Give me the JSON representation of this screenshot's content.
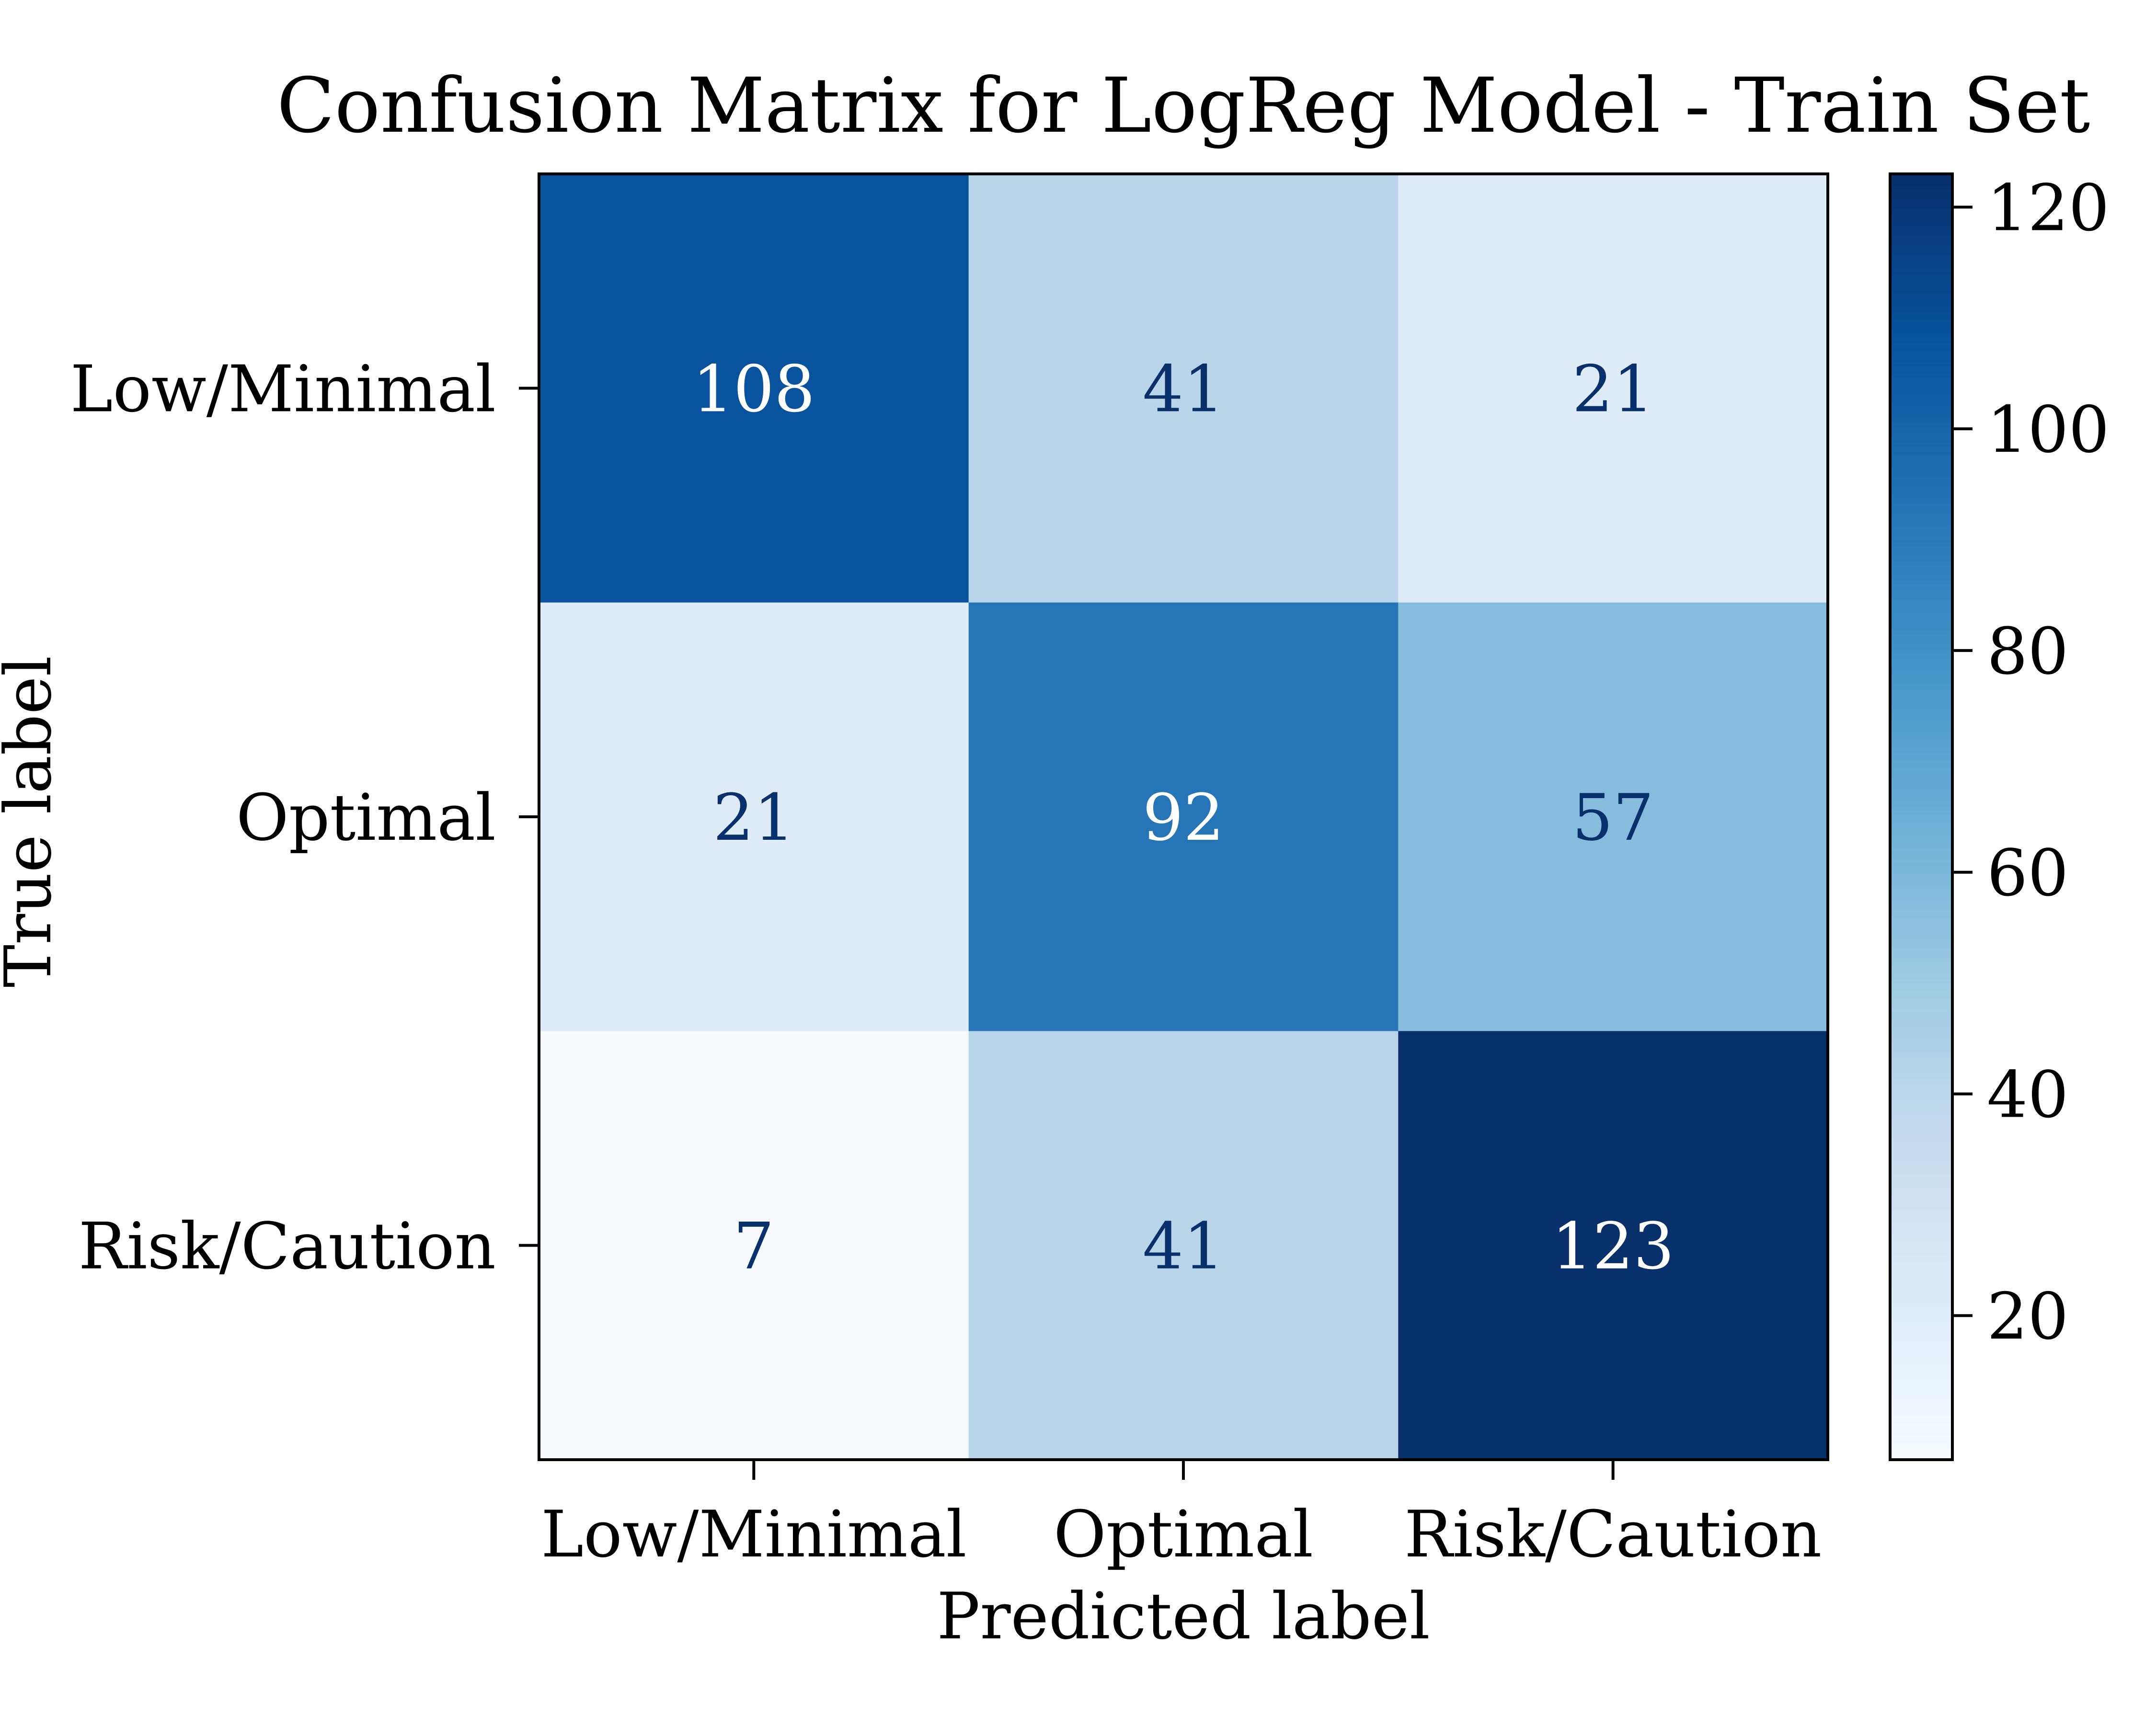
{
  "chart_data": {
    "type": "heatmap",
    "title": "Confusion Matrix for LogReg Model - Train Set",
    "xlabel": "Predicted label",
    "ylabel": "True label",
    "x_categories": [
      "Low/Minimal",
      "Optimal",
      "Risk/Caution"
    ],
    "y_categories": [
      "Low/Minimal",
      "Optimal",
      "Risk/Caution"
    ],
    "values": [
      [
        108,
        41,
        21
      ],
      [
        21,
        92,
        57
      ],
      [
        7,
        41,
        123
      ]
    ],
    "colormap": "Blues",
    "color_range": [
      7,
      123
    ],
    "colorbar_ticks": [
      20,
      40,
      60,
      80,
      100,
      120
    ],
    "colors": {
      "cmap_stops": [
        "#f7fbff",
        "#deebf7",
        "#c6dbef",
        "#9ecae1",
        "#6baed6",
        "#4292c6",
        "#2171b5",
        "#08519c",
        "#08306b"
      ],
      "text_dark": "#08306b",
      "text_light": "#ffffff",
      "frame": "#000000"
    }
  }
}
